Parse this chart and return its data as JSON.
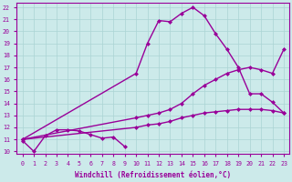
{
  "bg_color": "#cceaea",
  "line_color": "#990099",
  "grid_color": "#aad4d4",
  "xlabel": "Windchill (Refroidissement éolien,°C)",
  "xlabel_color": "#990099",
  "xlim": [
    -0.5,
    23.5
  ],
  "ylim": [
    9.8,
    22.4
  ],
  "yticks": [
    10,
    11,
    12,
    13,
    14,
    15,
    16,
    17,
    18,
    19,
    20,
    21,
    22
  ],
  "xticks": [
    0,
    1,
    2,
    3,
    4,
    5,
    6,
    7,
    8,
    9,
    10,
    11,
    12,
    13,
    14,
    15,
    16,
    17,
    18,
    19,
    20,
    21,
    22,
    23
  ],
  "curve_jagged_x": [
    0,
    1,
    2,
    3,
    4,
    5,
    6,
    7,
    8,
    9
  ],
  "curve_jagged_y": [
    10.9,
    10.0,
    11.3,
    11.8,
    11.8,
    11.7,
    11.4,
    11.1,
    11.2,
    10.4
  ],
  "curve_peaked_x": [
    0,
    10,
    11,
    12,
    13,
    14,
    15,
    16,
    17,
    18,
    19,
    20,
    21,
    22,
    23
  ],
  "curve_peaked_y": [
    11.0,
    16.5,
    19.0,
    20.9,
    20.8,
    21.5,
    22.0,
    21.3,
    19.8,
    18.5,
    17.0,
    14.8,
    14.8,
    14.1,
    13.2
  ],
  "curve_diag1_x": [
    0,
    10,
    11,
    12,
    13,
    14,
    15,
    16,
    17,
    18,
    19,
    20,
    21,
    22,
    23
  ],
  "curve_diag1_y": [
    11.0,
    12.8,
    13.0,
    13.2,
    13.5,
    14.0,
    14.8,
    15.5,
    16.0,
    16.5,
    16.8,
    17.0,
    16.8,
    16.5,
    18.5
  ],
  "curve_diag2_x": [
    0,
    10,
    11,
    12,
    13,
    14,
    15,
    16,
    17,
    18,
    19,
    20,
    21,
    22,
    23
  ],
  "curve_diag2_y": [
    11.0,
    12.0,
    12.2,
    12.3,
    12.5,
    12.8,
    13.0,
    13.2,
    13.3,
    13.4,
    13.5,
    13.5,
    13.5,
    13.4,
    13.2
  ],
  "marker": "D",
  "markersize": 2.5,
  "linewidth": 1.0
}
